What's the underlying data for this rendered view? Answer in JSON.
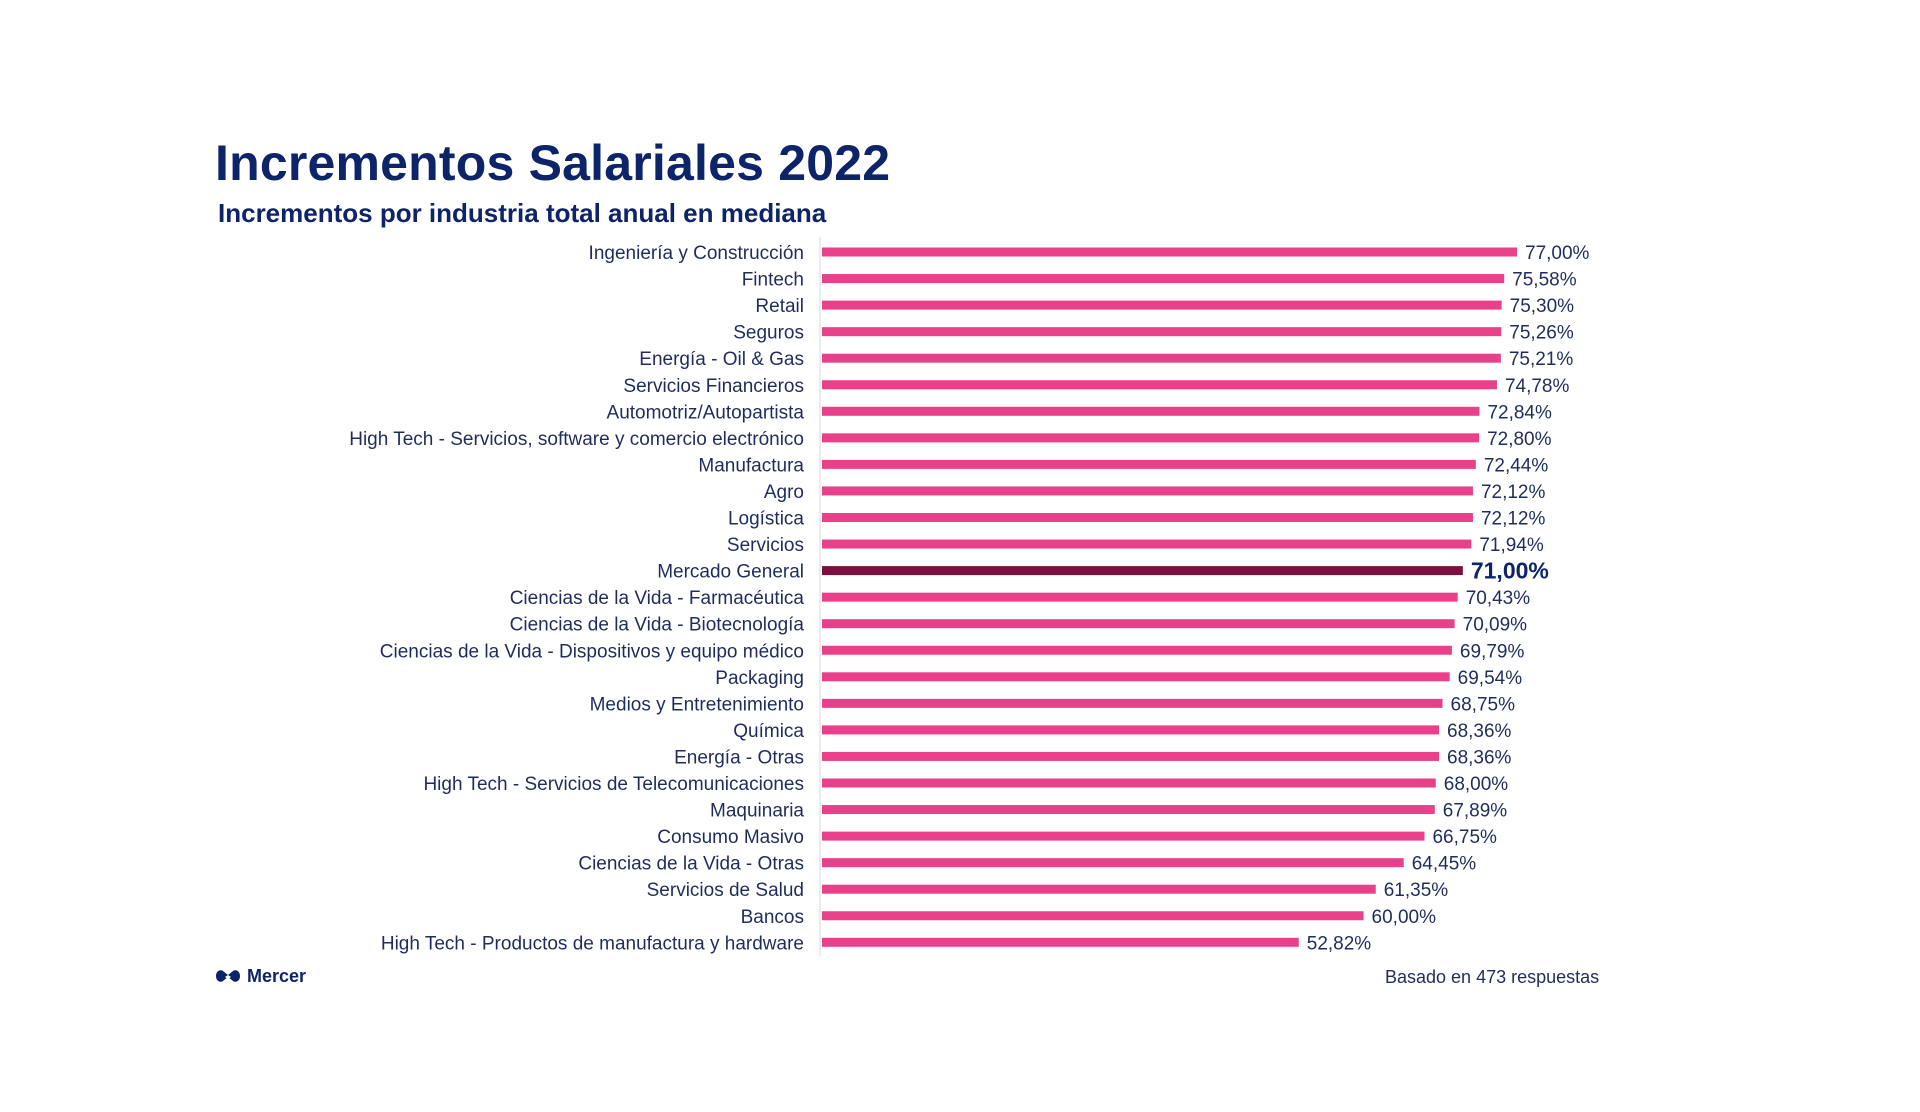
{
  "title": "Incrementos  Salariales 2022",
  "subtitle": "Incrementos por industria total anual en mediana",
  "brand": {
    "name": "Mercer",
    "icon": "mercer-logo-icon"
  },
  "footnote": "Basado en 473 respuestas",
  "colors": {
    "bar": "#e8418a",
    "bar_highlight": "#7b0f3f",
    "text": "#1f2d5c",
    "title": "#0e2468"
  },
  "chart_data": {
    "type": "bar",
    "orientation": "horizontal",
    "title": "Incrementos Salariales 2022",
    "subtitle": "Incrementos por industria total anual en mediana",
    "xlabel": "",
    "ylabel": "",
    "xlim": [
      0,
      77
    ],
    "grid": false,
    "highlight_category": "Mercado General",
    "categories": [
      "Ingeniería y Construcción",
      "Fintech",
      "Retail",
      "Seguros",
      "Energía - Oil & Gas",
      "Servicios Financieros",
      "Automotriz/Autopartista",
      "High Tech - Servicios, software y comercio electrónico",
      "Manufactura",
      "Agro",
      "Logística",
      "Servicios",
      "Mercado General",
      "Ciencias de la Vida - Farmacéutica",
      "Ciencias de la Vida - Biotecnología",
      "Ciencias de la Vida - Dispositivos y equipo médico",
      "Packaging",
      "Medios y Entretenimiento",
      "Química",
      "Energía - Otras",
      "High Tech - Servicios de Telecomunicaciones",
      "Maquinaria",
      "Consumo Masivo",
      "Ciencias de la Vida - Otras",
      "Servicios de Salud",
      "Bancos",
      "High Tech - Productos de manufactura y hardware"
    ],
    "values": [
      77.0,
      75.58,
      75.3,
      75.26,
      75.21,
      74.78,
      72.84,
      72.8,
      72.44,
      72.12,
      72.12,
      71.94,
      71.0,
      70.43,
      70.09,
      69.79,
      69.54,
      68.75,
      68.36,
      68.36,
      68.0,
      67.89,
      66.75,
      64.45,
      61.35,
      60.0,
      52.82
    ],
    "value_labels": [
      "77,00%",
      "75,58%",
      "75,30%",
      "75,26%",
      "75,21%",
      "74,78%",
      "72,84%",
      "72,80%",
      "72,44%",
      "72,12%",
      "72,12%",
      "71,94%",
      "71,00%",
      "70,43%",
      "70,09%",
      "69,79%",
      "69,54%",
      "68,75%",
      "68,36%",
      "68,36%",
      "68,00%",
      "67,89%",
      "66,75%",
      "64,45%",
      "61,35%",
      "60,00%",
      "52,82%"
    ]
  }
}
